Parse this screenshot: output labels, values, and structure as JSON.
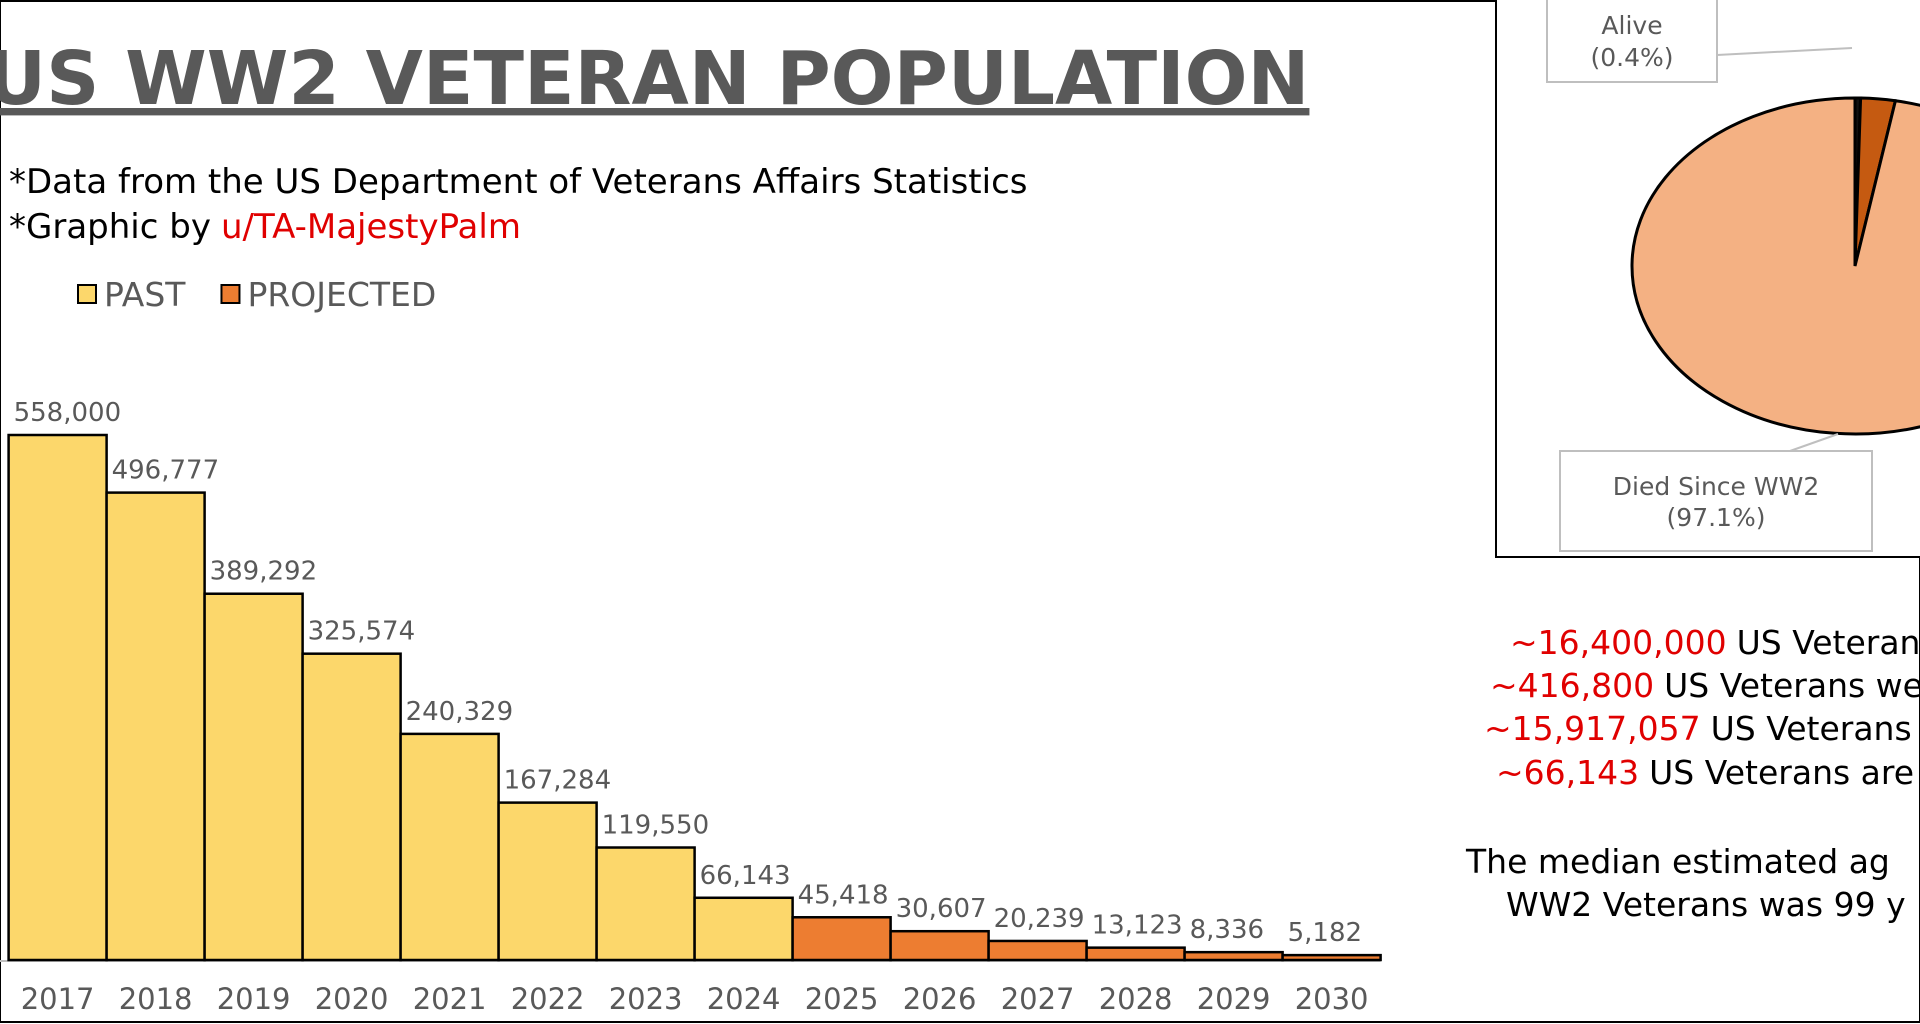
{
  "chart_data": [
    {
      "type": "bar",
      "title": "US WW2 VETERAN POPULATION",
      "subtitle": "*Data from the US Department of Veterans Affairs Statistics",
      "credit_prefix": "*Graphic by",
      "credit": "u/TA-MajestyPalm",
      "categories": [
        "2017",
        "2018",
        "2019",
        "2020",
        "2021",
        "2022",
        "2023",
        "2024",
        "2025",
        "2026",
        "2027",
        "2028",
        "2029",
        "2030"
      ],
      "series": [
        {
          "name": "PAST",
          "color": "#fcd76b",
          "values": [
            558000,
            496777,
            389292,
            325574,
            240329,
            167284,
            119550,
            66143,
            null,
            null,
            null,
            null,
            null,
            null
          ],
          "value_labels": [
            "558,000",
            "496,777",
            "389,292",
            "325,574",
            "240,329",
            "167,284",
            "119,550",
            "66,143",
            null,
            null,
            null,
            null,
            null,
            null
          ]
        },
        {
          "name": "PROJECTED",
          "color": "#ed7d31",
          "values": [
            null,
            null,
            null,
            null,
            null,
            null,
            null,
            null,
            45418,
            30607,
            20239,
            13123,
            8336,
            5182
          ],
          "value_labels": [
            null,
            null,
            null,
            null,
            null,
            null,
            null,
            null,
            "45,418",
            "30,607",
            "20,239",
            "13,123",
            "8,336",
            "5,182"
          ]
        }
      ],
      "legend": "top-left"
    },
    {
      "type": "pie",
      "labels": [
        "Alive",
        null,
        "Died Since WW2"
      ],
      "values": [
        0.4,
        2.5,
        97.1
      ],
      "value_labels": [
        "(0.4%)",
        null,
        "(97.1%)"
      ],
      "colors": [
        "#111111",
        "#c55a11",
        "#f4b183"
      ]
    }
  ],
  "text_panel": {
    "lines": [
      {
        "highlight": "~16,400,000",
        "text": "US Veterans"
      },
      {
        "highlight": "~416,800",
        "text": "US Veterans we"
      },
      {
        "highlight": "~15,917,057",
        "text": "US Veterans h"
      },
      {
        "highlight": "~66,143",
        "text": "US Veterans are"
      }
    ],
    "median": [
      "The median estimated ag",
      "WW2 Veterans was 99 y"
    ]
  }
}
